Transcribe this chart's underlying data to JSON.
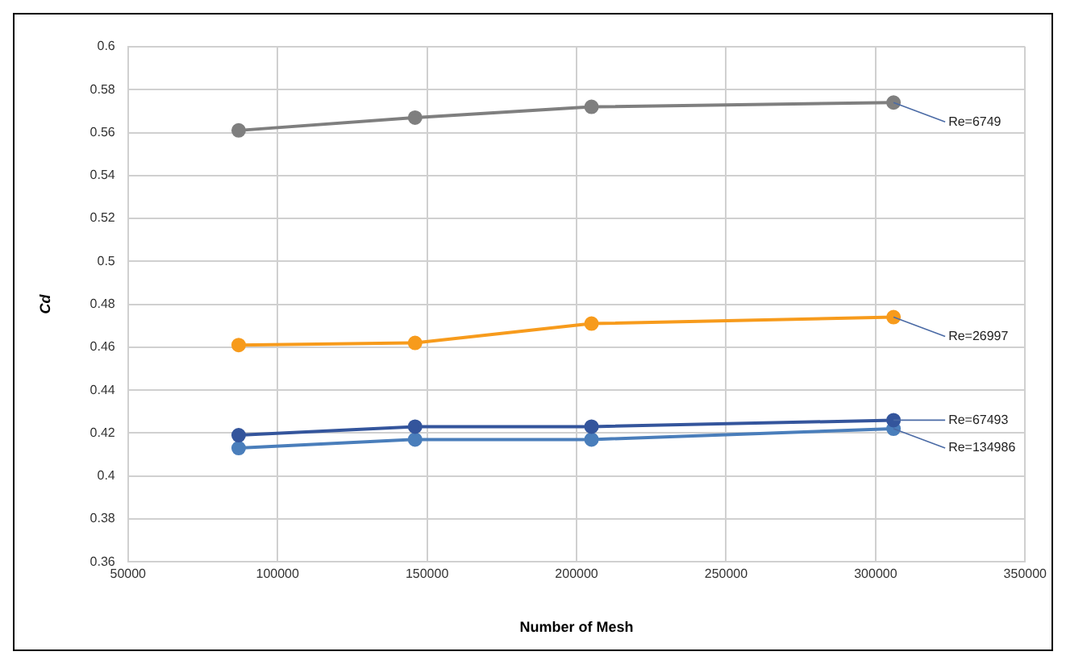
{
  "chart_data": {
    "type": "line",
    "xlabel": "Number of Mesh",
    "ylabel": "Cd",
    "xlim": [
      50000,
      350000
    ],
    "xticks": [
      50000,
      100000,
      150000,
      200000,
      250000,
      300000,
      350000
    ],
    "ylim": [
      0.36,
      0.6
    ],
    "yticks": [
      0.36,
      0.38,
      0.4,
      0.42,
      0.44,
      0.46,
      0.48,
      0.5,
      0.52,
      0.54,
      0.56,
      0.58,
      0.6
    ],
    "x": [
      87000,
      146000,
      205000,
      306000
    ],
    "series": [
      {
        "name": "Re=6749",
        "color": "#7f7f7f",
        "values": [
          0.561,
          0.567,
          0.572,
          0.574
        ]
      },
      {
        "name": "Re=26997",
        "color": "#f79b1c",
        "values": [
          0.461,
          0.462,
          0.471,
          0.474
        ]
      },
      {
        "name": "Re=67493",
        "color": "#34559c",
        "values": [
          0.419,
          0.423,
          0.423,
          0.426
        ]
      },
      {
        "name": "Re=134986",
        "color": "#4a7ebb",
        "values": [
          0.413,
          0.417,
          0.417,
          0.422
        ]
      }
    ],
    "grid": true,
    "legend": false,
    "marker": "circle",
    "line_style": "solid"
  }
}
